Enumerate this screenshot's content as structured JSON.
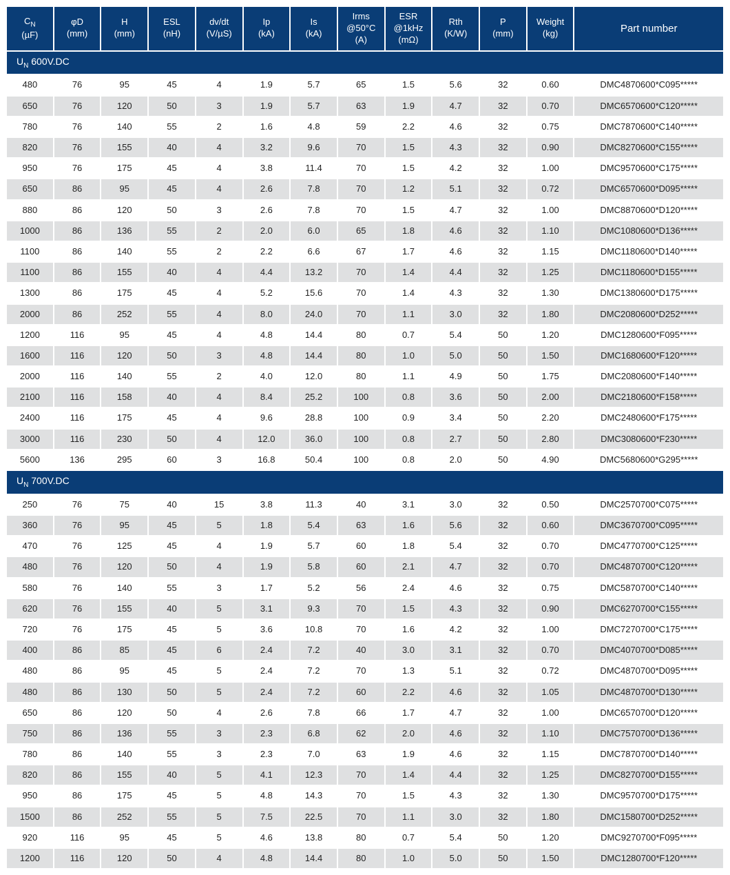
{
  "columns": [
    {
      "l1": "C",
      "sub": "N",
      "l2": "(µF)"
    },
    {
      "l1": "φD",
      "l2": "(mm)"
    },
    {
      "l1": "H",
      "l2": "(mm)"
    },
    {
      "l1": "ESL",
      "l2": "(nH)"
    },
    {
      "l1": "dv/dt",
      "l2": "(V/µS)"
    },
    {
      "l1": "Ip",
      "l2": "(kA)"
    },
    {
      "l1": "Is",
      "l2": "(kA)"
    },
    {
      "l1": "Irms",
      "l2": "@50°C",
      "l3": "(A)"
    },
    {
      "l1": "ESR",
      "l2": "@1kHz",
      "l3": "(mΩ)"
    },
    {
      "l1": "Rth",
      "l2": "(K/W)"
    },
    {
      "l1": "P",
      "l2": "(mm)"
    },
    {
      "l1": "Weight",
      "l2": "(kg)"
    },
    {
      "l1": "Part number"
    }
  ],
  "sections": [
    {
      "title_prefix": "U",
      "title_sub": "N",
      "title_rest": " 600V.DC",
      "rows": [
        [
          "480",
          "76",
          "95",
          "45",
          "4",
          "1.9",
          "5.7",
          "65",
          "1.5",
          "5.6",
          "32",
          "0.60",
          "DMC4870600*C095*****"
        ],
        [
          "650",
          "76",
          "120",
          "50",
          "3",
          "1.9",
          "5.7",
          "63",
          "1.9",
          "4.7",
          "32",
          "0.70",
          "DMC6570600*C120*****"
        ],
        [
          "780",
          "76",
          "140",
          "55",
          "2",
          "1.6",
          "4.8",
          "59",
          "2.2",
          "4.6",
          "32",
          "0.75",
          "DMC7870600*C140*****"
        ],
        [
          "820",
          "76",
          "155",
          "40",
          "4",
          "3.2",
          "9.6",
          "70",
          "1.5",
          "4.3",
          "32",
          "0.90",
          "DMC8270600*C155*****"
        ],
        [
          "950",
          "76",
          "175",
          "45",
          "4",
          "3.8",
          "11.4",
          "70",
          "1.5",
          "4.2",
          "32",
          "1.00",
          "DMC9570600*C175*****"
        ],
        [
          "650",
          "86",
          "95",
          "45",
          "4",
          "2.6",
          "7.8",
          "70",
          "1.2",
          "5.1",
          "32",
          "0.72",
          "DMC6570600*D095*****"
        ],
        [
          "880",
          "86",
          "120",
          "50",
          "3",
          "2.6",
          "7.8",
          "70",
          "1.5",
          "4.7",
          "32",
          "1.00",
          "DMC8870600*D120*****"
        ],
        [
          "1000",
          "86",
          "136",
          "55",
          "2",
          "2.0",
          "6.0",
          "65",
          "1.8",
          "4.6",
          "32",
          "1.10",
          "DMC1080600*D136*****"
        ],
        [
          "1100",
          "86",
          "140",
          "55",
          "2",
          "2.2",
          "6.6",
          "67",
          "1.7",
          "4.6",
          "32",
          "1.15",
          "DMC1180600*D140*****"
        ],
        [
          "1100",
          "86",
          "155",
          "40",
          "4",
          "4.4",
          "13.2",
          "70",
          "1.4",
          "4.4",
          "32",
          "1.25",
          "DMC1180600*D155*****"
        ],
        [
          "1300",
          "86",
          "175",
          "45",
          "4",
          "5.2",
          "15.6",
          "70",
          "1.4",
          "4.3",
          "32",
          "1.30",
          "DMC1380600*D175*****"
        ],
        [
          "2000",
          "86",
          "252",
          "55",
          "4",
          "8.0",
          "24.0",
          "70",
          "1.1",
          "3.0",
          "32",
          "1.80",
          "DMC2080600*D252*****"
        ],
        [
          "1200",
          "116",
          "95",
          "45",
          "4",
          "4.8",
          "14.4",
          "80",
          "0.7",
          "5.4",
          "50",
          "1.20",
          "DMC1280600*F095*****"
        ],
        [
          "1600",
          "116",
          "120",
          "50",
          "3",
          "4.8",
          "14.4",
          "80",
          "1.0",
          "5.0",
          "50",
          "1.50",
          "DMC1680600*F120*****"
        ],
        [
          "2000",
          "116",
          "140",
          "55",
          "2",
          "4.0",
          "12.0",
          "80",
          "1.1",
          "4.9",
          "50",
          "1.75",
          "DMC2080600*F140*****"
        ],
        [
          "2100",
          "116",
          "158",
          "40",
          "4",
          "8.4",
          "25.2",
          "100",
          "0.8",
          "3.6",
          "50",
          "2.00",
          "DMC2180600*F158*****"
        ],
        [
          "2400",
          "116",
          "175",
          "45",
          "4",
          "9.6",
          "28.8",
          "100",
          "0.9",
          "3.4",
          "50",
          "2.20",
          "DMC2480600*F175*****"
        ],
        [
          "3000",
          "116",
          "230",
          "50",
          "4",
          "12.0",
          "36.0",
          "100",
          "0.8",
          "2.7",
          "50",
          "2.80",
          "DMC3080600*F230*****"
        ],
        [
          "5600",
          "136",
          "295",
          "60",
          "3",
          "16.8",
          "50.4",
          "100",
          "0.8",
          "2.0",
          "50",
          "4.90",
          "DMC5680600*G295*****"
        ]
      ]
    },
    {
      "title_prefix": "U",
      "title_sub": "N",
      "title_rest": " 700V.DC",
      "rows": [
        [
          "250",
          "76",
          "75",
          "40",
          "15",
          "3.8",
          "11.3",
          "40",
          "3.1",
          "3.0",
          "32",
          "0.50",
          "DMC2570700*C075*****"
        ],
        [
          "360",
          "76",
          "95",
          "45",
          "5",
          "1.8",
          "5.4",
          "63",
          "1.6",
          "5.6",
          "32",
          "0.60",
          "DMC3670700*C095*****"
        ],
        [
          "470",
          "76",
          "125",
          "45",
          "4",
          "1.9",
          "5.7",
          "60",
          "1.8",
          "5.4",
          "32",
          "0.70",
          "DMC4770700*C125*****"
        ],
        [
          "480",
          "76",
          "120",
          "50",
          "4",
          "1.9",
          "5.8",
          "60",
          "2.1",
          "4.7",
          "32",
          "0.70",
          "DMC4870700*C120*****"
        ],
        [
          "580",
          "76",
          "140",
          "55",
          "3",
          "1.7",
          "5.2",
          "56",
          "2.4",
          "4.6",
          "32",
          "0.75",
          "DMC5870700*C140*****"
        ],
        [
          "620",
          "76",
          "155",
          "40",
          "5",
          "3.1",
          "9.3",
          "70",
          "1.5",
          "4.3",
          "32",
          "0.90",
          "DMC6270700*C155*****"
        ],
        [
          "720",
          "76",
          "175",
          "45",
          "5",
          "3.6",
          "10.8",
          "70",
          "1.6",
          "4.2",
          "32",
          "1.00",
          "DMC7270700*C175*****"
        ],
        [
          "400",
          "86",
          "85",
          "45",
          "6",
          "2.4",
          "7.2",
          "40",
          "3.0",
          "3.1",
          "32",
          "0.70",
          "DMC4070700*D085*****"
        ],
        [
          "480",
          "86",
          "95",
          "45",
          "5",
          "2.4",
          "7.2",
          "70",
          "1.3",
          "5.1",
          "32",
          "0.72",
          "DMC4870700*D095*****"
        ],
        [
          "480",
          "86",
          "130",
          "50",
          "5",
          "2.4",
          "7.2",
          "60",
          "2.2",
          "4.6",
          "32",
          "1.05",
          "DMC4870700*D130*****"
        ],
        [
          "650",
          "86",
          "120",
          "50",
          "4",
          "2.6",
          "7.8",
          "66",
          "1.7",
          "4.7",
          "32",
          "1.00",
          "DMC6570700*D120*****"
        ],
        [
          "750",
          "86",
          "136",
          "55",
          "3",
          "2.3",
          "6.8",
          "62",
          "2.0",
          "4.6",
          "32",
          "1.10",
          "DMC7570700*D136*****"
        ],
        [
          "780",
          "86",
          "140",
          "55",
          "3",
          "2.3",
          "7.0",
          "63",
          "1.9",
          "4.6",
          "32",
          "1.15",
          "DMC7870700*D140*****"
        ],
        [
          "820",
          "86",
          "155",
          "40",
          "5",
          "4.1",
          "12.3",
          "70",
          "1.4",
          "4.4",
          "32",
          "1.25",
          "DMC8270700*D155*****"
        ],
        [
          "950",
          "86",
          "175",
          "45",
          "5",
          "4.8",
          "14.3",
          "70",
          "1.5",
          "4.3",
          "32",
          "1.30",
          "DMC9570700*D175*****"
        ],
        [
          "1500",
          "86",
          "252",
          "55",
          "5",
          "7.5",
          "22.5",
          "70",
          "1.1",
          "3.0",
          "32",
          "1.80",
          "DMC1580700*D252*****"
        ],
        [
          "920",
          "116",
          "95",
          "45",
          "5",
          "4.6",
          "13.8",
          "80",
          "0.7",
          "5.4",
          "50",
          "1.20",
          "DMC9270700*F095*****"
        ],
        [
          "1200",
          "116",
          "120",
          "50",
          "4",
          "4.8",
          "14.4",
          "80",
          "1.0",
          "5.0",
          "50",
          "1.50",
          "DMC1280700*F120*****"
        ]
      ]
    }
  ],
  "colors": {
    "header_bg": "#0a3d76",
    "header_fg": "#ffffff",
    "row_odd": "#ffffff",
    "row_even": "#dfe0e1"
  }
}
